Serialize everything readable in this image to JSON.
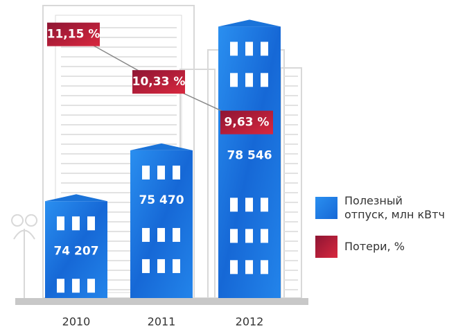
{
  "chart_data": {
    "type": "bar",
    "categories": [
      "2010",
      "2011",
      "2012"
    ],
    "series": [
      {
        "name": "Полезный отпуск, млн кВтч",
        "color": "#1a73d9",
        "values": [
          74207,
          75470,
          78546
        ],
        "value_labels": [
          "74 207",
          "75 470",
          "78 546"
        ]
      },
      {
        "name": "Потери, %",
        "color": "#b5173a",
        "type": "line",
        "axis": "y2",
        "values": [
          11.15,
          10.33,
          9.63
        ],
        "value_labels": [
          "11,15 %",
          "10,33 %",
          "9,63 %"
        ]
      }
    ],
    "ylim": [
      71800,
      79000
    ],
    "y2lim": [
      6.6,
      11.6
    ],
    "legend": "right"
  }
}
